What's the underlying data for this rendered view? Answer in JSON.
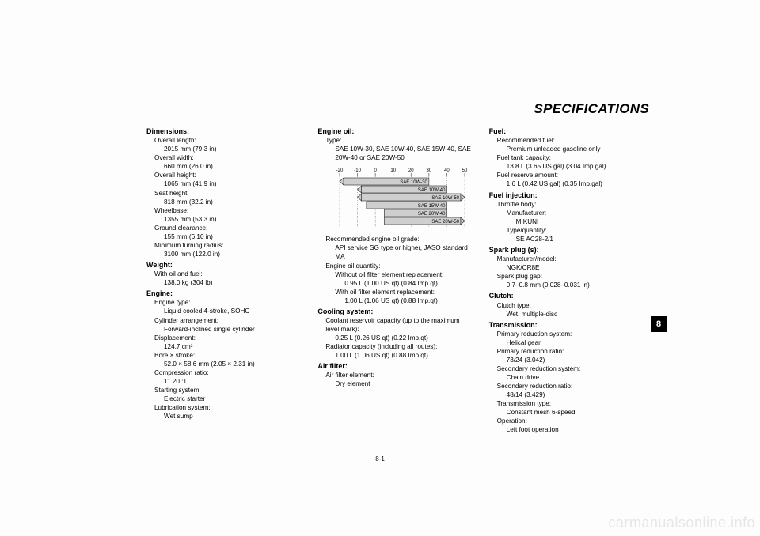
{
  "header": {
    "title": "SPECIFICATIONS"
  },
  "tab": {
    "label": "8"
  },
  "pagenum": "8-1",
  "watermark": "carmanualsonline.info",
  "col1": {
    "dimensions": {
      "head": "Dimensions:",
      "items": [
        {
          "label": "Overall length:",
          "value": "2015 mm (79.3 in)"
        },
        {
          "label": "Overall width:",
          "value": "660 mm (26.0 in)"
        },
        {
          "label": "Overall height:",
          "value": "1065 mm (41.9 in)"
        },
        {
          "label": "Seat height:",
          "value": "818 mm (32.2 in)"
        },
        {
          "label": "Wheelbase:",
          "value": "1355 mm (53.3 in)"
        },
        {
          "label": "Ground clearance:",
          "value": "155 mm (6.10 in)"
        },
        {
          "label": "Minimum turning radius:",
          "value": "3100 mm (122.0 in)"
        }
      ]
    },
    "weight": {
      "head": "Weight:",
      "items": [
        {
          "label": "With oil and fuel:",
          "value": "138.0 kg (304 lb)"
        }
      ]
    },
    "engine": {
      "head": "Engine:",
      "items": [
        {
          "label": "Engine type:",
          "value": "Liquid cooled 4-stroke, SOHC"
        },
        {
          "label": "Cylinder arrangement:",
          "value": "Forward-inclined single cylinder"
        },
        {
          "label": "Displacement:",
          "value": "124.7 cm³"
        },
        {
          "label": "Bore × stroke:",
          "value": "52.0 × 58.6 mm (2.05 × 2.31 in)"
        },
        {
          "label": "Compression ratio:",
          "value": "11.20 :1"
        },
        {
          "label": "Starting system:",
          "value": "Electric starter"
        },
        {
          "label": "Lubrication system:",
          "value": "Wet sump"
        }
      ]
    }
  },
  "col2": {
    "engine_oil": {
      "head": "Engine oil:",
      "type_label": "Type:",
      "type_value": "SAE 10W-30, SAE 10W-40, SAE 15W-40, SAE 20W-40 or SAE 20W-50",
      "rec_label": "Recommended engine oil grade:",
      "rec_value": "API service SG type or higher, JASO standard MA",
      "qty_label": "Engine oil quantity:",
      "qty_items": [
        {
          "label": "Without oil filter element replacement:",
          "value": "0.95 L (1.00 US qt) (0.84 Imp.qt)"
        },
        {
          "label": "With oil filter element replacement:",
          "value": "1.00 L (1.06 US qt) (0.88 Imp.qt)"
        }
      ]
    },
    "cooling": {
      "head": "Cooling system:",
      "items": [
        {
          "label": "Coolant reservoir capacity (up to the maximum level mark):",
          "value": "0.25 L (0.26 US qt) (0.22 Imp.qt)"
        },
        {
          "label": "Radiator capacity (including all routes):",
          "value": "1.00 L (1.06 US qt) (0.88 Imp.qt)"
        }
      ]
    },
    "air_filter": {
      "head": "Air filter:",
      "items": [
        {
          "label": "Air filter element:",
          "value": "Dry element"
        }
      ]
    },
    "oil_chart": {
      "type": "range-bar",
      "unit_label": "˚C",
      "xlim": [
        -20,
        50
      ],
      "ticks": [
        -20,
        -10,
        0,
        10,
        20,
        30,
        40,
        50
      ],
      "grid_color": "#666666",
      "dotted_color": "#666666",
      "bar_fill": "#cfcfcf",
      "bar_stroke": "#222222",
      "text_color": "#000000",
      "fontsize": 6,
      "bars": [
        {
          "label": "SAE 10W-30",
          "from": -20,
          "to": 30,
          "arrow_left": true
        },
        {
          "label": "SAE 10W-40",
          "from": -10,
          "to": 40,
          "arrow_left": true
        },
        {
          "label": "SAE 10W-50",
          "from": -10,
          "to": 50,
          "arrow_left": true,
          "arrow_right": true
        },
        {
          "label": "SAE 15W-40",
          "from": -5,
          "to": 40
        },
        {
          "label": "SAE 20W-40",
          "from": 5,
          "to": 40
        },
        {
          "label": "SAE 20W-50",
          "from": 5,
          "to": 50,
          "arrow_right": true
        }
      ]
    }
  },
  "col3": {
    "fuel": {
      "head": "Fuel:",
      "items": [
        {
          "label": "Recommended fuel:",
          "value": "Premium unleaded gasoline only"
        },
        {
          "label": "Fuel tank capacity:",
          "value": "13.8 L (3.65 US gal) (3.04 Imp.gal)"
        },
        {
          "label": "Fuel reserve amount:",
          "value": "1.6 L (0.42 US gal) (0.35 Imp.gal)"
        }
      ]
    },
    "fuel_injection": {
      "head": "Fuel injection:",
      "tb_label": "Throttle body:",
      "items": [
        {
          "label": "Manufacturer:",
          "value": "MIKUNI"
        },
        {
          "label": "Type/quantity:",
          "value": "SE AC28-2/1"
        }
      ]
    },
    "spark": {
      "head": "Spark plug (s):",
      "items": [
        {
          "label": "Manufacturer/model:",
          "value": "NGK/CR8E"
        },
        {
          "label": "Spark plug gap:",
          "value": "0.7–0.8 mm (0.028–0.031 in)"
        }
      ]
    },
    "clutch": {
      "head": "Clutch:",
      "items": [
        {
          "label": "Clutch type:",
          "value": "Wet, multiple-disc"
        }
      ]
    },
    "transmission": {
      "head": "Transmission:",
      "items": [
        {
          "label": "Primary reduction system:",
          "value": "Helical gear"
        },
        {
          "label": "Primary reduction ratio:",
          "value": "73/24 (3.042)"
        },
        {
          "label": "Secondary reduction system:",
          "value": "Chain drive"
        },
        {
          "label": "Secondary reduction ratio:",
          "value": "48/14 (3.429)"
        },
        {
          "label": "Transmission type:",
          "value": "Constant mesh 6-speed"
        },
        {
          "label": "Operation:",
          "value": "Left foot operation"
        }
      ]
    }
  }
}
